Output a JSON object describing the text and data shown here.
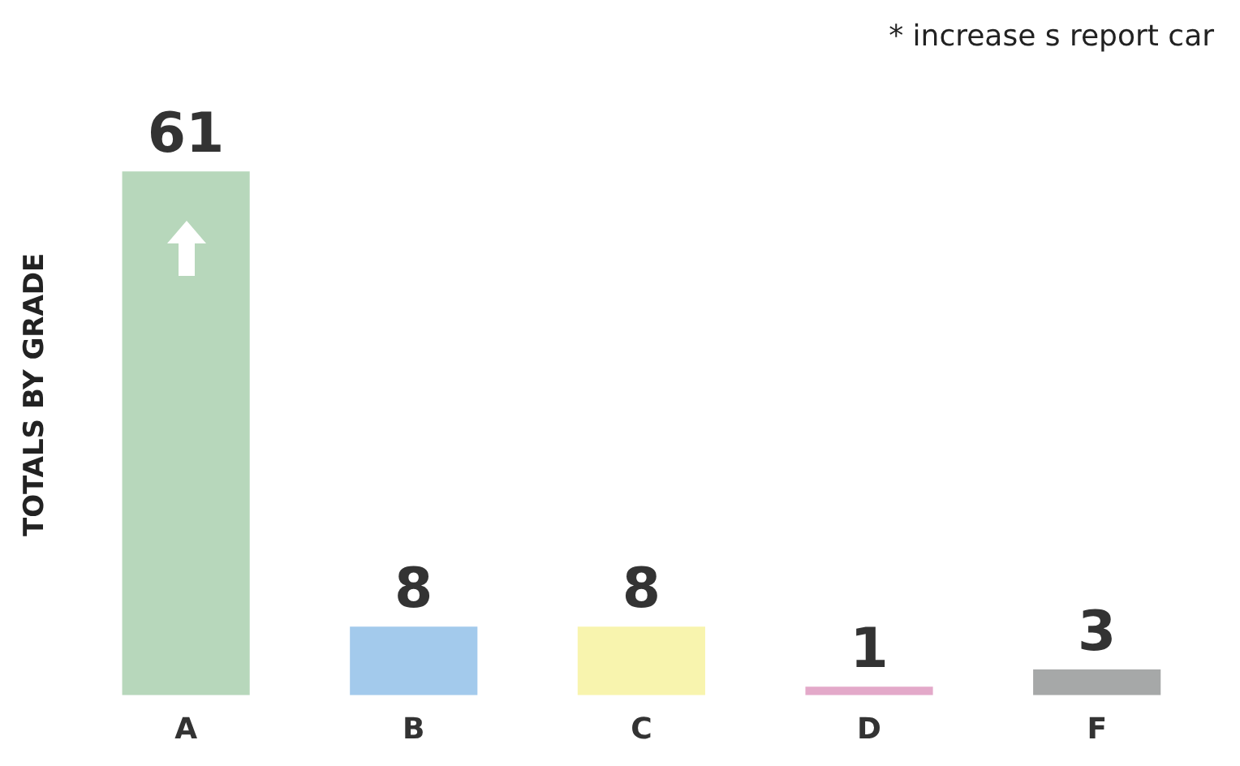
{
  "chart_data": {
    "type": "bar",
    "ylabel": "TOTALS BY GRADE",
    "categories": [
      "A",
      "B",
      "C",
      "D",
      "F"
    ],
    "values": [
      61,
      8,
      8,
      1,
      3
    ],
    "colors": [
      "#b7d7bb",
      "#a3caec",
      "#f8f4ae",
      "#e3a9c9",
      "#a6a8a8"
    ],
    "data_labels": true,
    "grid": false,
    "legend": false,
    "annotations": [
      "* increase s report car"
    ]
  }
}
